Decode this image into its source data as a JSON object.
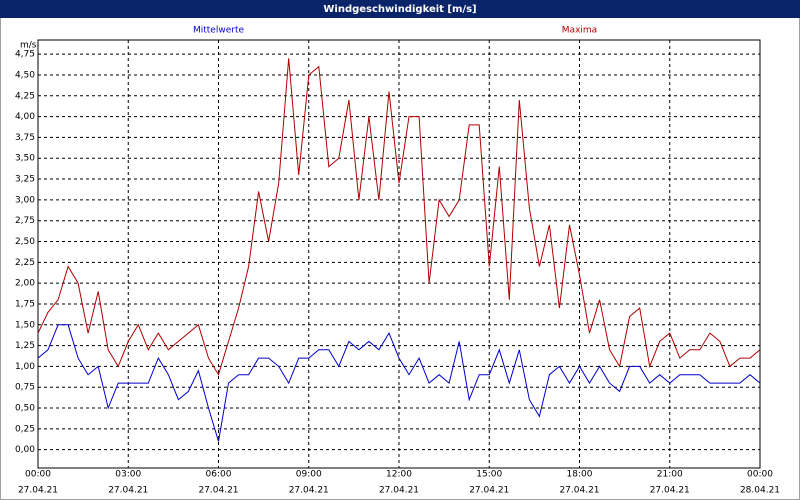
{
  "chart_data": {
    "type": "line",
    "title": "Windgeschwindigkeit [m/s]",
    "ylabel": "m/s",
    "x": [
      0,
      20,
      40,
      60,
      80,
      100,
      120,
      140,
      160,
      180,
      200,
      220,
      240,
      260,
      280,
      300,
      320,
      340,
      360,
      380,
      400,
      420,
      440,
      460,
      480,
      500,
      520,
      540,
      560,
      580,
      600,
      620,
      640,
      660,
      680,
      700,
      720,
      740,
      760,
      780,
      800,
      820,
      840,
      860,
      880,
      900,
      920,
      940,
      960,
      980,
      1000,
      1020,
      1040,
      1060,
      1080,
      1100,
      1120,
      1140,
      1160,
      1180,
      1200,
      1220,
      1240,
      1260,
      1280,
      1300,
      1320,
      1340,
      1360,
      1380,
      1400,
      1420,
      1440
    ],
    "series": [
      {
        "name": "Mittelwerte",
        "color": "#0000cc",
        "values": [
          1.1,
          1.2,
          1.5,
          1.5,
          1.1,
          0.9,
          1.0,
          0.5,
          0.8,
          0.8,
          0.8,
          0.8,
          1.1,
          0.9,
          0.6,
          0.7,
          0.95,
          0.5,
          0.1,
          0.8,
          0.9,
          0.9,
          1.1,
          1.1,
          1.0,
          0.8,
          1.1,
          1.1,
          1.2,
          1.2,
          1.0,
          1.3,
          1.2,
          1.3,
          1.2,
          1.4,
          1.1,
          0.9,
          1.1,
          0.8,
          0.9,
          0.8,
          1.3,
          0.6,
          0.9,
          0.9,
          1.2,
          0.8,
          1.2,
          0.6,
          0.4,
          0.9,
          1.0,
          0.8,
          1.0,
          0.8,
          1.0,
          0.8,
          0.7,
          1.0,
          1.0,
          0.8,
          0.9,
          0.8,
          0.9,
          0.9,
          0.9,
          0.8,
          0.8,
          0.8,
          0.8,
          0.9,
          0.8
        ]
      },
      {
        "name": "Maxima",
        "color": "#b00000",
        "values": [
          1.4,
          1.65,
          1.8,
          2.2,
          2.0,
          1.4,
          1.9,
          1.2,
          1.0,
          1.3,
          1.5,
          1.2,
          1.4,
          1.2,
          1.3,
          1.4,
          1.5,
          1.1,
          0.9,
          1.3,
          1.7,
          2.2,
          3.1,
          2.5,
          3.2,
          4.7,
          3.3,
          4.5,
          4.6,
          3.4,
          3.5,
          4.2,
          3.0,
          4.0,
          3.0,
          4.3,
          3.2,
          4.0,
          4.0,
          2.0,
          3.0,
          2.8,
          3.0,
          3.9,
          3.9,
          2.2,
          3.4,
          1.8,
          4.2,
          2.9,
          2.2,
          2.7,
          1.7,
          2.7,
          2.1,
          1.4,
          1.8,
          1.2,
          1.0,
          1.6,
          1.7,
          1.0,
          1.3,
          1.4,
          1.1,
          1.2,
          1.2,
          1.4,
          1.3,
          1.0,
          1.1,
          1.1,
          1.2
        ]
      }
    ],
    "xlim": [
      0,
      1440
    ],
    "xticks": [
      {
        "value": 0,
        "label": "00:00",
        "date": "27.04.21"
      },
      {
        "value": 180,
        "label": "03:00",
        "date": "27.04.21"
      },
      {
        "value": 360,
        "label": "06:00",
        "date": "27.04.21"
      },
      {
        "value": 540,
        "label": "09:00",
        "date": "27.04.21"
      },
      {
        "value": 720,
        "label": "12:00",
        "date": "27.04.21"
      },
      {
        "value": 900,
        "label": "15:00",
        "date": "27.04.21"
      },
      {
        "value": 1080,
        "label": "18:00",
        "date": "27.04.21"
      },
      {
        "value": 1260,
        "label": "21:00",
        "date": "27.04.21"
      },
      {
        "value": 1440,
        "label": "00:00",
        "date": "28.04.21"
      }
    ],
    "ylim": [
      -0.22,
      4.92
    ],
    "yticks": [
      {
        "value": 0,
        "label": "0,00"
      },
      {
        "value": 0.25,
        "label": "0,25"
      },
      {
        "value": 0.5,
        "label": "0,50"
      },
      {
        "value": 0.75,
        "label": "0,75"
      },
      {
        "value": 1,
        "label": "1,00"
      },
      {
        "value": 1.25,
        "label": "1,25"
      },
      {
        "value": 1.5,
        "label": "1,50"
      },
      {
        "value": 1.75,
        "label": "1,75"
      },
      {
        "value": 2,
        "label": "2,00"
      },
      {
        "value": 2.25,
        "label": "2,25"
      },
      {
        "value": 2.5,
        "label": "2,50"
      },
      {
        "value": 2.75,
        "label": "2,75"
      },
      {
        "value": 3,
        "label": "3,00"
      },
      {
        "value": 3.25,
        "label": "3,25"
      },
      {
        "value": 3.5,
        "label": "3,50"
      },
      {
        "value": 3.75,
        "label": "3,75"
      },
      {
        "value": 4,
        "label": "4,00"
      },
      {
        "value": 4.25,
        "label": "4,25"
      },
      {
        "value": 4.5,
        "label": "4,50"
      },
      {
        "value": 4.75,
        "label": "4,75"
      }
    ],
    "grid": true
  }
}
